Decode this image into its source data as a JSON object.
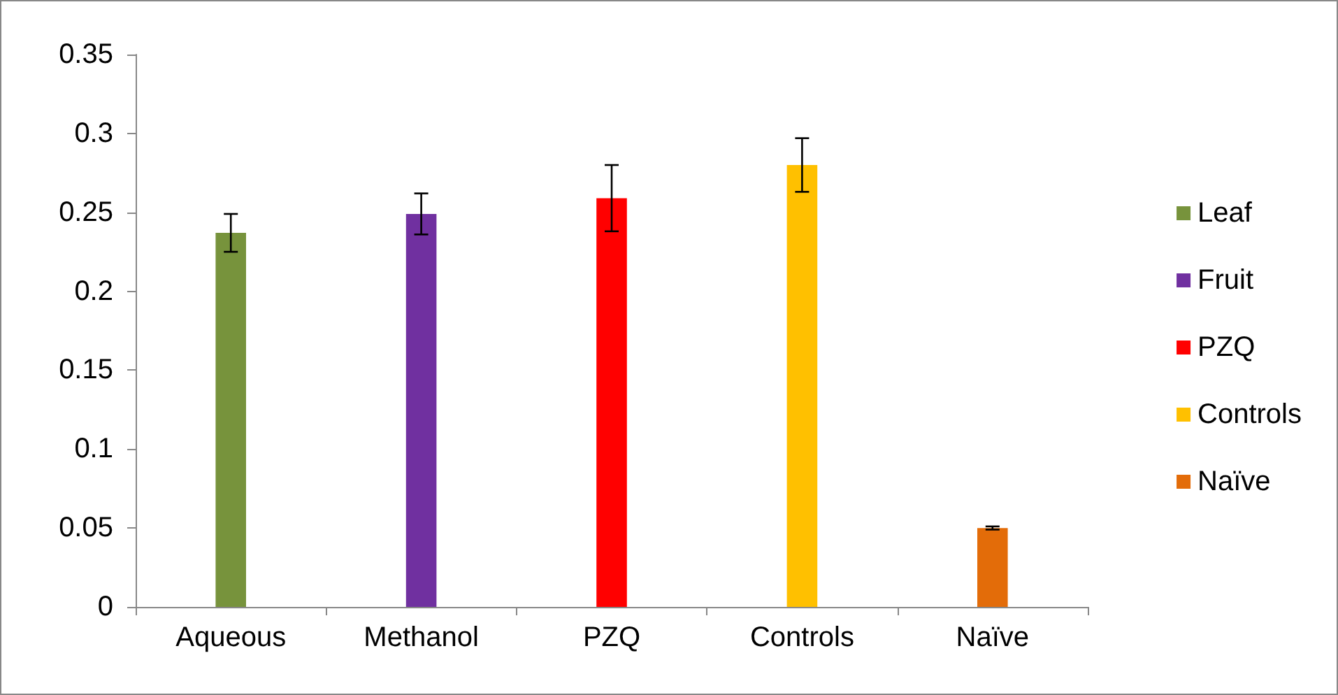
{
  "chart_data": {
    "type": "bar",
    "categories": [
      "Aqueous",
      "Methanol",
      "PZQ",
      "Controls",
      "Naïve"
    ],
    "series": [
      {
        "name": "Leaf",
        "color": "#77933c",
        "values": [
          0.237,
          null,
          null,
          null,
          null
        ],
        "errors": [
          0.012,
          null,
          null,
          null,
          null
        ]
      },
      {
        "name": "Fruit",
        "color": "#7030a0",
        "values": [
          null,
          0.249,
          null,
          null,
          null
        ],
        "errors": [
          null,
          0.013,
          null,
          null,
          null
        ]
      },
      {
        "name": "PZQ",
        "color": "#ff0000",
        "values": [
          null,
          null,
          0.259,
          null,
          null
        ],
        "errors": [
          null,
          null,
          0.021,
          null,
          null
        ]
      },
      {
        "name": "Controls",
        "color": "#ffc000",
        "values": [
          null,
          null,
          null,
          0.28,
          null
        ],
        "errors": [
          null,
          null,
          null,
          0.017,
          null
        ]
      },
      {
        "name": "Naïve",
        "color": "#e36c09",
        "values": [
          null,
          null,
          null,
          null,
          0.05
        ],
        "errors": [
          null,
          null,
          null,
          null,
          0.001
        ]
      }
    ],
    "ylim": [
      0,
      0.35
    ],
    "yticks": [
      0,
      0.05,
      0.1,
      0.15,
      0.2,
      0.25,
      0.3,
      0.35
    ],
    "grid": false,
    "legend": "right"
  }
}
